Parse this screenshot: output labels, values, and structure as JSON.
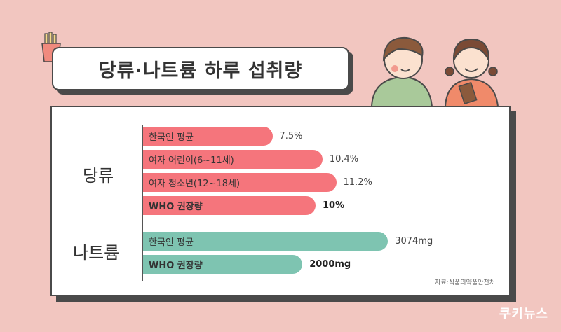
{
  "title": "당류·나트륨 하루 섭취량",
  "source": "자료:식품의약품안전처",
  "brand": "쿠키뉴스",
  "colors": {
    "sugar": "#f5757c",
    "sodium": "#7ec4b1",
    "background": "#f2c6c0"
  },
  "chart_data": [
    {
      "type": "bar",
      "group": "당류",
      "categories": [
        "한국인 평균",
        "여자 어린이(6~11세)",
        "여자 청소년(12~18세)",
        "WHO 권장량"
      ],
      "values": [
        7.5,
        10.4,
        11.2,
        10
      ],
      "value_labels": [
        "7.5%",
        "10.4%",
        "11.2%",
        "10%"
      ],
      "color": "#f5757c"
    },
    {
      "type": "bar",
      "group": "나트륨",
      "categories": [
        "한국인 평균",
        "WHO 권장량"
      ],
      "values": [
        3074,
        2000
      ],
      "value_labels": [
        "3074mg",
        "2000mg"
      ],
      "color": "#7ec4b1"
    }
  ]
}
